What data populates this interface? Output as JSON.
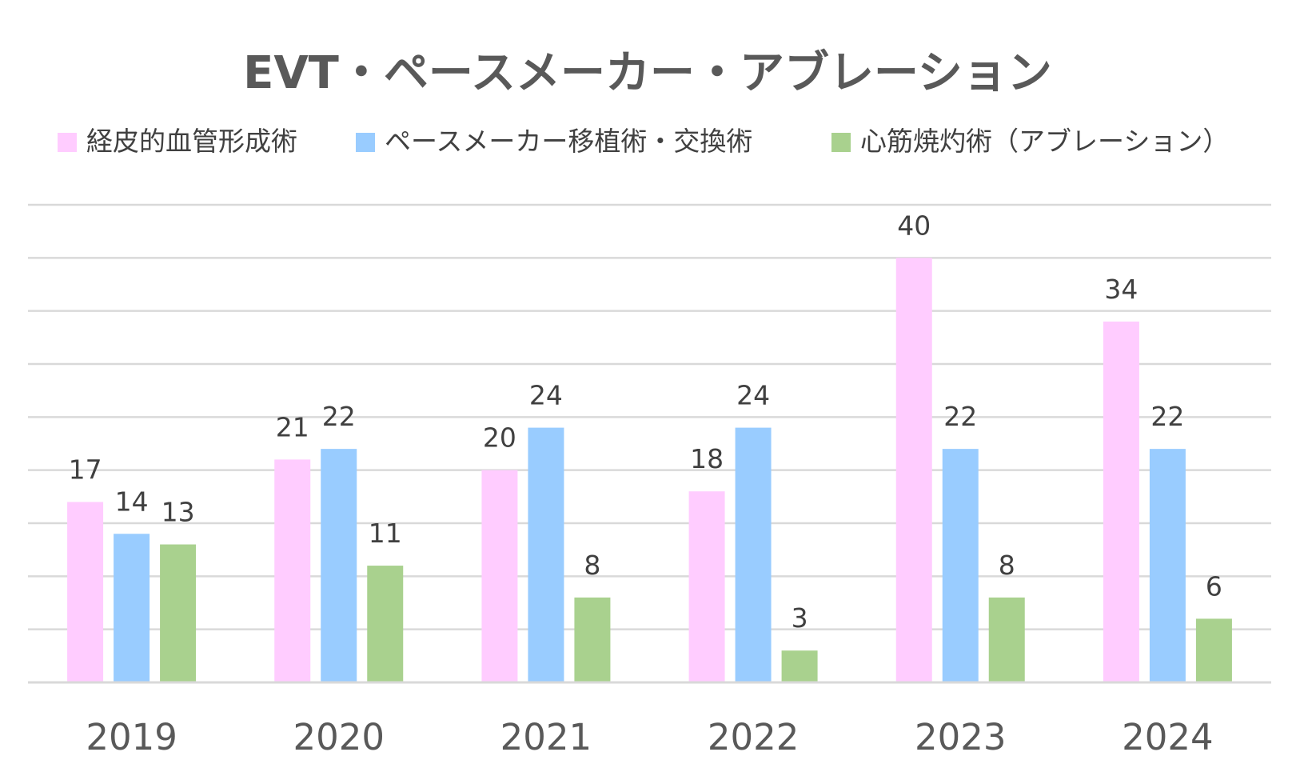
{
  "chart_data": {
    "type": "bar",
    "title": "EVT・ペースメーカー・アブレーション",
    "xlabel": "",
    "ylabel": "",
    "categories": [
      "2019",
      "2020",
      "2021",
      "2022",
      "2023",
      "2024"
    ],
    "series": [
      {
        "name": "経皮的血管形成術",
        "color": "#FFCCFF",
        "values": [
          17,
          21,
          20,
          18,
          40,
          34
        ]
      },
      {
        "name": "ペースメーカー移植術・交換術",
        "color": "#99CCFF",
        "values": [
          14,
          22,
          24,
          24,
          22,
          22
        ]
      },
      {
        "name": "心筋焼灼術（アブレーション）",
        "color": "#A9D18E",
        "values": [
          13,
          11,
          8,
          3,
          8,
          6
        ]
      }
    ],
    "ylim": [
      0,
      45
    ],
    "ytick_step": 5,
    "y_axis_labels_visible": false,
    "grid": true,
    "legend": "top",
    "data_labels": true
  }
}
